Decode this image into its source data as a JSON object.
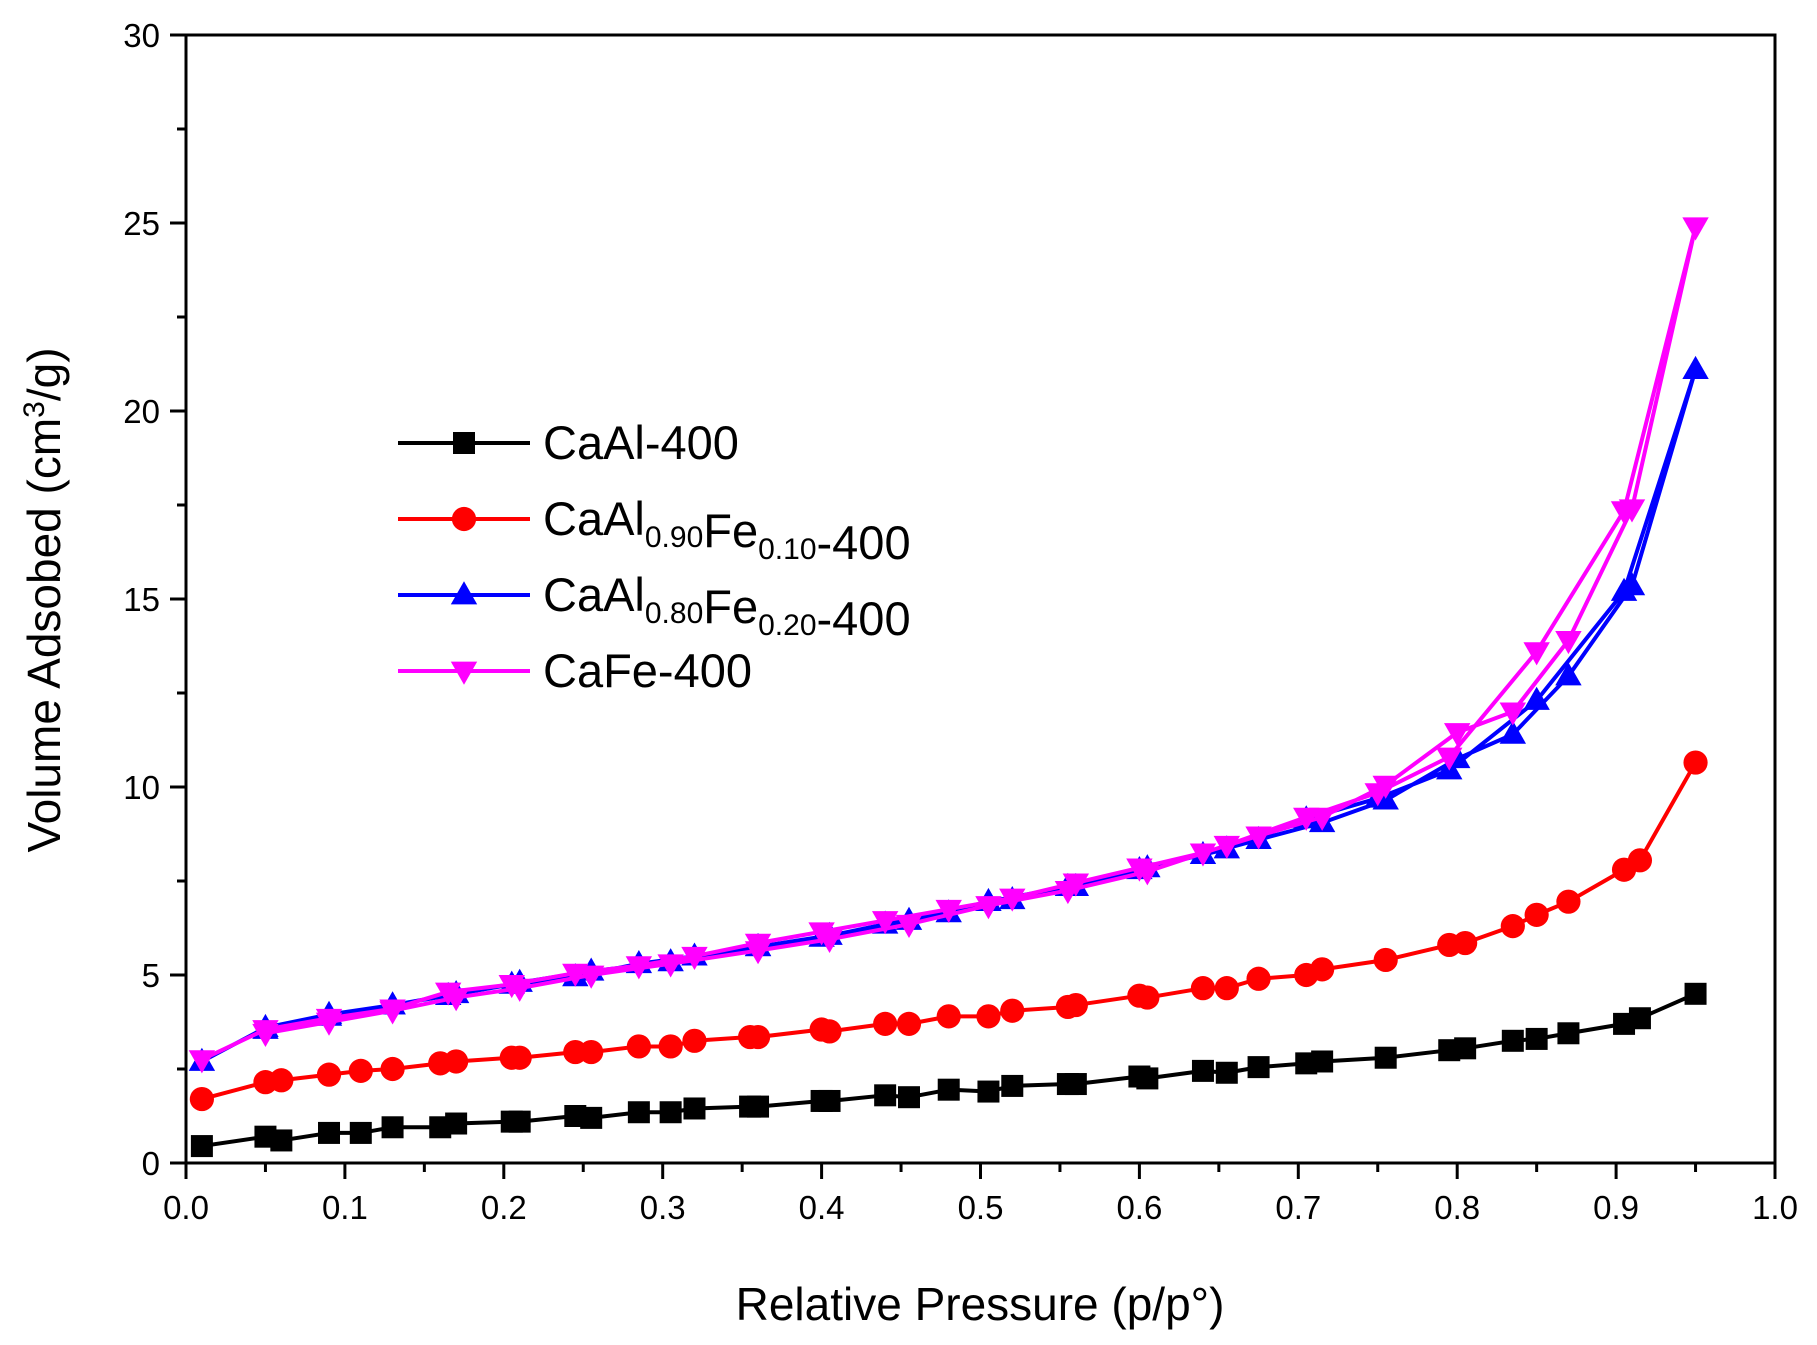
{
  "chart_data": {
    "type": "line",
    "title": "",
    "xlabel": "Relative Pressure (p/p°)",
    "ylabel_parts": {
      "before": "Volume Adsobed (cm",
      "sup": "3",
      "after": "/g)"
    },
    "xlim": [
      0.0,
      1.0
    ],
    "ylim": [
      0,
      30
    ],
    "x_ticks": [
      0.0,
      0.1,
      0.2,
      0.3,
      0.4,
      0.5,
      0.6,
      0.7,
      0.8,
      0.9,
      1.0
    ],
    "x_tick_labels": [
      "0.0",
      "0.1",
      "0.2",
      "0.3",
      "0.4",
      "0.5",
      "0.6",
      "0.7",
      "0.8",
      "0.9",
      "1.0"
    ],
    "y_ticks": [
      0,
      5,
      10,
      15,
      20,
      25,
      30
    ],
    "y_tick_labels": [
      "0",
      "5",
      "10",
      "15",
      "20",
      "25",
      "30"
    ],
    "grid": false,
    "legend_position": "center-left",
    "series": [
      {
        "name": "CaAl-400",
        "label_parts": [
          {
            "t": "CaAl-400"
          }
        ],
        "color": "#000000",
        "marker": "square",
        "x": [
          0.01,
          0.05,
          0.06,
          0.09,
          0.11,
          0.13,
          0.16,
          0.17,
          0.205,
          0.21,
          0.245,
          0.255,
          0.285,
          0.305,
          0.32,
          0.355,
          0.36,
          0.4,
          0.405,
          0.44,
          0.455,
          0.48,
          0.505,
          0.52,
          0.555,
          0.56,
          0.6,
          0.605,
          0.64,
          0.655,
          0.675,
          0.705,
          0.715,
          0.755,
          0.795,
          0.805,
          0.835,
          0.85,
          0.87,
          0.905,
          0.915,
          0.95
        ],
        "y": [
          0.45,
          0.7,
          0.6,
          0.8,
          0.8,
          0.95,
          0.95,
          1.05,
          1.1,
          1.1,
          1.25,
          1.2,
          1.35,
          1.35,
          1.45,
          1.5,
          1.5,
          1.65,
          1.65,
          1.8,
          1.75,
          1.95,
          1.9,
          2.05,
          2.1,
          2.1,
          2.3,
          2.25,
          2.45,
          2.4,
          2.55,
          2.65,
          2.7,
          2.8,
          3.0,
          3.05,
          3.25,
          3.3,
          3.45,
          3.7,
          3.85,
          4.5
        ]
      },
      {
        "name": "CaAl0.90Fe0.10-400",
        "label_parts": [
          {
            "t": "CaAl"
          },
          {
            "t": "0.90",
            "sub": true
          },
          {
            "t": "Fe"
          },
          {
            "t": "0.10",
            "sub": true
          },
          {
            "t": "-400"
          }
        ],
        "color": "#ff0000",
        "marker": "circle",
        "x": [
          0.01,
          0.05,
          0.06,
          0.09,
          0.11,
          0.13,
          0.16,
          0.17,
          0.205,
          0.21,
          0.245,
          0.255,
          0.285,
          0.305,
          0.32,
          0.355,
          0.36,
          0.4,
          0.405,
          0.44,
          0.455,
          0.48,
          0.505,
          0.52,
          0.555,
          0.56,
          0.6,
          0.605,
          0.64,
          0.655,
          0.675,
          0.705,
          0.715,
          0.755,
          0.795,
          0.805,
          0.835,
          0.85,
          0.87,
          0.905,
          0.915,
          0.95
        ],
        "y": [
          1.7,
          2.15,
          2.2,
          2.35,
          2.45,
          2.5,
          2.65,
          2.7,
          2.8,
          2.8,
          2.95,
          2.95,
          3.1,
          3.1,
          3.25,
          3.35,
          3.35,
          3.55,
          3.5,
          3.7,
          3.7,
          3.9,
          3.9,
          4.05,
          4.15,
          4.2,
          4.45,
          4.4,
          4.65,
          4.65,
          4.9,
          5.0,
          5.15,
          5.4,
          5.8,
          5.85,
          6.3,
          6.6,
          6.95,
          7.8,
          8.05,
          10.65
        ]
      },
      {
        "name": "CaAl0.80Fe0.20-400",
        "label_parts": [
          {
            "t": " CaAl"
          },
          {
            "t": "0.80",
            "sub": true
          },
          {
            "t": "Fe"
          },
          {
            "t": "0.20",
            "sub": true
          },
          {
            "t": "-400"
          }
        ],
        "color": "#0000ff",
        "marker": "triangle-up",
        "x": [
          0.01,
          0.05,
          0.09,
          0.13,
          0.165,
          0.205,
          0.245,
          0.285,
          0.32,
          0.36,
          0.4,
          0.44,
          0.48,
          0.52,
          0.56,
          0.6,
          0.64,
          0.675,
          0.715,
          0.755,
          0.8,
          0.835,
          0.87,
          0.91,
          0.95,
          0.905,
          0.85,
          0.795,
          0.75,
          0.705,
          0.655,
          0.605,
          0.555,
          0.505,
          0.455,
          0.405,
          0.36,
          0.305,
          0.255,
          0.21,
          0.17,
          0.13,
          0.09,
          0.05
        ],
        "y": [
          2.7,
          3.6,
          3.95,
          4.2,
          4.45,
          4.75,
          4.95,
          5.3,
          5.5,
          5.75,
          6.0,
          6.35,
          6.65,
          7.0,
          7.35,
          7.8,
          8.2,
          8.6,
          9.05,
          9.65,
          10.75,
          11.4,
          12.95,
          15.35,
          21.1,
          15.2,
          12.3,
          10.45,
          9.7,
          9.15,
          8.35,
          7.85,
          7.35,
          6.95,
          6.45,
          6.05,
          5.75,
          5.35,
          5.1,
          4.8,
          4.5,
          4.2,
          3.9,
          3.55
        ]
      },
      {
        "name": "CaFe-400",
        "label_parts": [
          {
            "t": "CaFe-400"
          }
        ],
        "color": "#ff00ff",
        "marker": "triangle-down",
        "x": [
          0.01,
          0.05,
          0.09,
          0.13,
          0.165,
          0.205,
          0.245,
          0.285,
          0.32,
          0.36,
          0.4,
          0.44,
          0.48,
          0.52,
          0.56,
          0.6,
          0.64,
          0.675,
          0.715,
          0.755,
          0.8,
          0.835,
          0.87,
          0.91,
          0.95,
          0.905,
          0.85,
          0.795,
          0.75,
          0.705,
          0.655,
          0.605,
          0.555,
          0.505,
          0.455,
          0.405,
          0.36,
          0.305,
          0.255,
          0.21,
          0.17,
          0.13,
          0.09,
          0.05
        ],
        "y": [
          2.75,
          3.55,
          3.85,
          4.1,
          4.55,
          4.75,
          5.05,
          5.25,
          5.5,
          5.85,
          6.15,
          6.45,
          6.75,
          7.05,
          7.45,
          7.85,
          8.25,
          8.7,
          9.2,
          10.05,
          11.45,
          12.0,
          13.9,
          17.4,
          24.9,
          17.35,
          13.6,
          10.8,
          9.85,
          9.2,
          8.45,
          7.75,
          7.25,
          6.85,
          6.35,
          5.95,
          5.65,
          5.3,
          5.0,
          4.65,
          4.4,
          4.05,
          3.75,
          3.45
        ]
      }
    ]
  }
}
